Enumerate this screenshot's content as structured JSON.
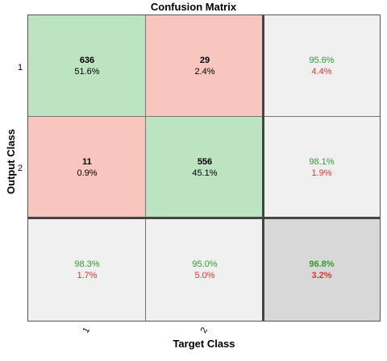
{
  "chart_data": {
    "type": "heatmap",
    "title": "Confusion Matrix",
    "xlabel": "Target Class",
    "ylabel": "Output Class",
    "x_ticks": [
      "1",
      "2"
    ],
    "y_ticks": [
      "1",
      "2"
    ],
    "matrix": {
      "r1c1": {
        "count": "636",
        "pct": "51.6%"
      },
      "r1c2": {
        "count": "29",
        "pct": "2.4%"
      },
      "r2c1": {
        "count": "11",
        "pct": "0.9%"
      },
      "r2c2": {
        "count": "556",
        "pct": "45.1%"
      }
    },
    "row_summary": [
      {
        "correct": "95.6%",
        "wrong": "4.4%"
      },
      {
        "correct": "98.1%",
        "wrong": "1.9%"
      }
    ],
    "col_summary": [
      {
        "correct": "98.3%",
        "wrong": "1.7%"
      },
      {
        "correct": "95.0%",
        "wrong": "5.0%"
      }
    ],
    "overall": {
      "correct": "96.8%",
      "wrong": "3.2%"
    },
    "colors": {
      "correct_cell": "#bce4c0",
      "error_cell": "#f8c6be",
      "summary_cell": "#f0f0f0",
      "overall_cell": "#d8d8d8",
      "correct_text": "#2ca02c",
      "error_text": "#e0352b"
    }
  }
}
